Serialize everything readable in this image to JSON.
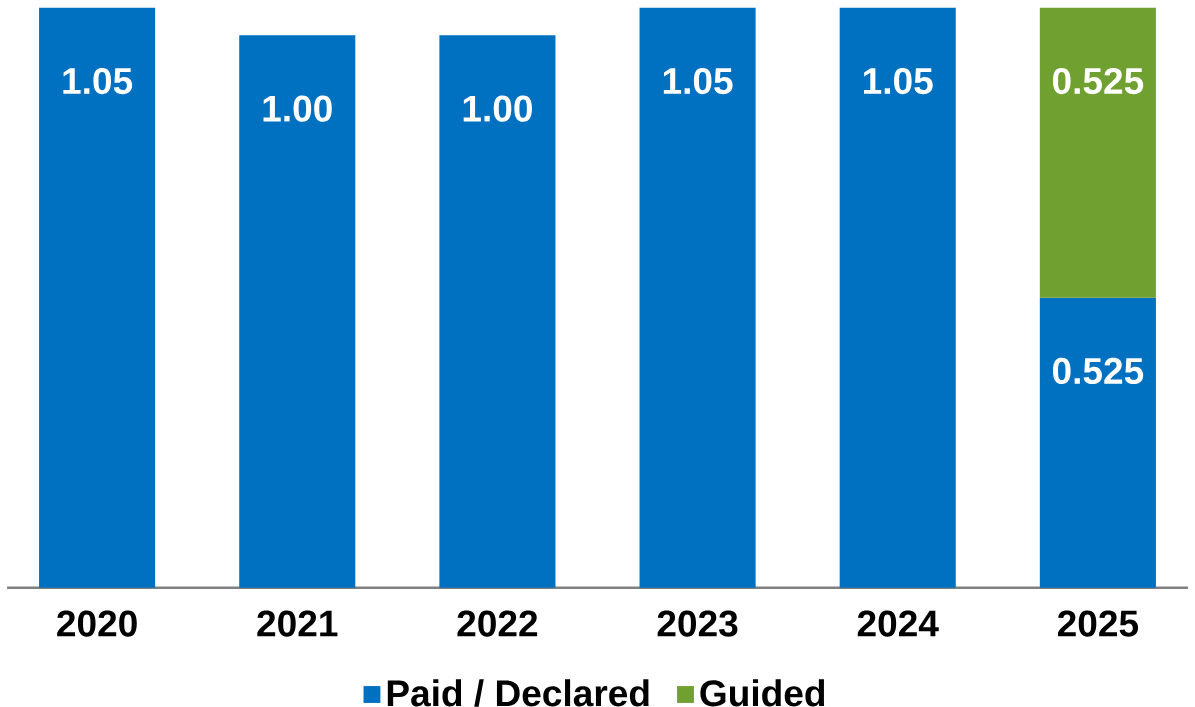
{
  "chart_data": {
    "type": "bar",
    "stacked": true,
    "categories": [
      "2020",
      "2021",
      "2022",
      "2023",
      "2024",
      "2025"
    ],
    "series": [
      {
        "name": "Paid / Declared",
        "color": "#0070c0",
        "values": [
          1.05,
          1.0,
          1.0,
          1.05,
          1.05,
          0.525
        ],
        "value_labels": [
          "1.05",
          "1.00",
          "1.00",
          "1.05",
          "1.05",
          "0.525"
        ]
      },
      {
        "name": "Guided",
        "color": "#70a030",
        "values": [
          null,
          null,
          null,
          null,
          null,
          0.525
        ],
        "value_labels": [
          null,
          null,
          null,
          null,
          null,
          "0.525"
        ]
      }
    ],
    "legend": "bottom",
    "grid": false
  }
}
